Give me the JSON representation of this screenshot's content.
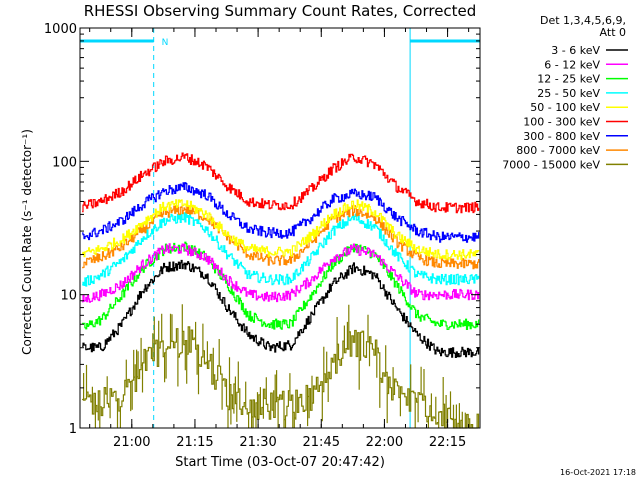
{
  "chart_data": {
    "type": "line",
    "title": "RHESSI Observing Summary Count Rates, Corrected",
    "xlabel": "Start Time (03-Oct-07 20:47:42)",
    "ylabel": "Corrected Count Rate (s⁻¹ detector⁻¹)",
    "ylog": true,
    "ylim": [
      1,
      1000
    ],
    "xlim_minutes": [
      0,
      95
    ],
    "x_tick_minutes": [
      12.3,
      27.3,
      42.3,
      57.3,
      72.3,
      87.3
    ],
    "x_tick_labels": [
      "21:00",
      "21:15",
      "21:30",
      "21:45",
      "22:00",
      "22:15"
    ],
    "y_ticks": [
      1,
      10,
      100,
      1000
    ],
    "y_tick_labels": [
      "1",
      "10",
      "100",
      "1000"
    ],
    "legend_header": [
      "Det 1,3,4,5,6,9,",
      "Att 0"
    ],
    "legend_position": "right",
    "grid": false,
    "footer_date": "16-Oct-2021 17:18",
    "night_marker": "N",
    "sun_bars": [
      {
        "start": 0,
        "end": 17.5
      },
      {
        "start": 78.4,
        "end": 95
      }
    ],
    "night_dashes": [
      17.5,
      95
    ],
    "boundary_lines": [
      0,
      78.4
    ],
    "time_minutes": [
      0,
      5,
      10,
      15,
      20,
      25,
      30,
      35,
      40,
      45,
      50,
      55,
      60,
      65,
      70,
      75,
      80,
      85,
      90,
      95
    ],
    "series": [
      {
        "name": "3 - 6 keV",
        "color": "#000000",
        "values": [
          4,
          4,
          6,
          11,
          16,
          17,
          14,
          8,
          5,
          4,
          4.2,
          7,
          12,
          16,
          14,
          8,
          5,
          3.7,
          3.7,
          3.7
        ]
      },
      {
        "name": "6 - 12 keV",
        "color": "#ff00ff",
        "values": [
          9,
          10,
          12,
          17,
          22,
          22,
          19,
          13,
          10,
          9.5,
          10,
          13,
          19,
          22,
          20,
          14,
          10,
          10,
          10,
          10
        ]
      },
      {
        "name": "12 - 25 keV",
        "color": "#00ff00",
        "values": [
          5.5,
          6.5,
          10,
          16,
          22,
          23,
          19,
          12,
          7,
          6,
          6,
          10,
          17,
          23,
          20,
          12,
          7,
          6,
          6,
          6
        ]
      },
      {
        "name": "25 - 50 keV",
        "color": "#00ffff",
        "values": [
          12,
          14,
          18,
          27,
          36,
          38,
          31,
          20,
          14,
          13,
          13,
          19,
          30,
          38,
          32,
          20,
          14,
          13,
          13,
          13
        ]
      },
      {
        "name": "50 - 100 keV",
        "color": "#ffff00",
        "values": [
          20,
          22,
          26,
          35,
          46,
          48,
          40,
          28,
          22,
          21,
          21,
          28,
          40,
          48,
          42,
          28,
          22,
          20,
          20,
          20
        ]
      },
      {
        "name": "100 - 300 keV",
        "color": "#ff0000",
        "values": [
          45,
          50,
          60,
          80,
          100,
          108,
          92,
          65,
          50,
          47,
          47,
          62,
          88,
          108,
          95,
          65,
          50,
          45,
          45,
          45
        ]
      },
      {
        "name": "300 - 800 keV",
        "color": "#0000ff",
        "values": [
          27,
          30,
          36,
          48,
          60,
          64,
          56,
          40,
          31,
          29,
          29,
          38,
          52,
          57,
          54,
          38,
          30,
          27,
          27,
          27
        ]
      },
      {
        "name": "800 - 7000 keV",
        "color": "#ff8800",
        "values": [
          17,
          19,
          23,
          31,
          41,
          44,
          38,
          27,
          20,
          18,
          18,
          25,
          37,
          43,
          38,
          25,
          19,
          17,
          17,
          17
        ]
      },
      {
        "name": "7000 - 15000 keV",
        "color": "#808000",
        "values": [
          1.5,
          1.5,
          1.8,
          3,
          4.3,
          4.6,
          3.2,
          1.8,
          1.5,
          1.5,
          1.5,
          1.8,
          3.2,
          4.5,
          3.6,
          1.8,
          1.5,
          1.2,
          1,
          1
        ]
      }
    ]
  }
}
